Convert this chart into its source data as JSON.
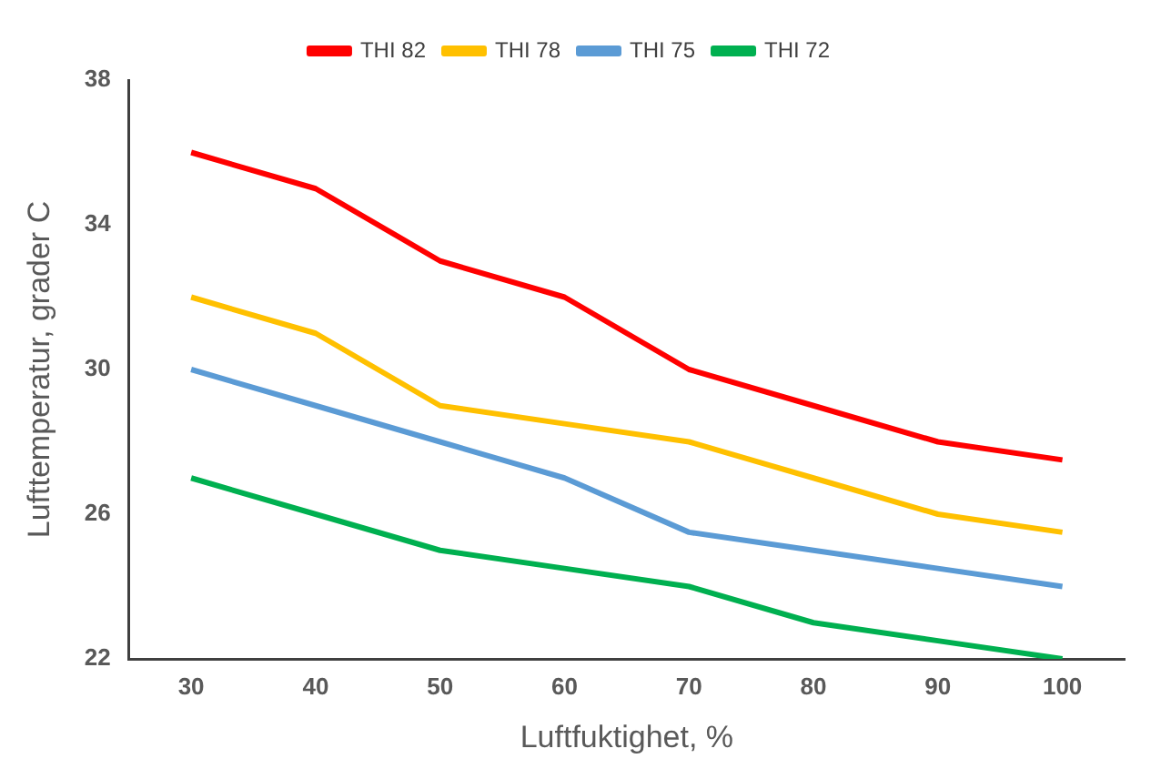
{
  "chart_data": {
    "type": "line",
    "xlabel": "Luftfuktighet, %",
    "ylabel": "Lufttemperatur, grader C",
    "categories": [
      "30",
      "40",
      "50",
      "60",
      "70",
      "80",
      "90",
      "100"
    ],
    "series": [
      {
        "name": "THI 82",
        "color": "#ff0000",
        "values": [
          36,
          35,
          33,
          32,
          30,
          29,
          28,
          27.5
        ]
      },
      {
        "name": "THI 78",
        "color": "#ffc000",
        "values": [
          32,
          31,
          29,
          28.5,
          28,
          27,
          26,
          25.5
        ]
      },
      {
        "name": "THI 75",
        "color": "#5b9bd5",
        "values": [
          30,
          29,
          28,
          27,
          25.5,
          25,
          24.5,
          24
        ]
      },
      {
        "name": "THI 72",
        "color": "#00b050",
        "values": [
          27,
          26,
          25,
          24.5,
          24,
          23,
          22.5,
          22
        ]
      }
    ],
    "ylim": [
      22,
      38
    ],
    "yticks": [
      22,
      26,
      30,
      34,
      38
    ],
    "grid": false,
    "legend": "top",
    "marker": "none",
    "line_style": "solid"
  }
}
